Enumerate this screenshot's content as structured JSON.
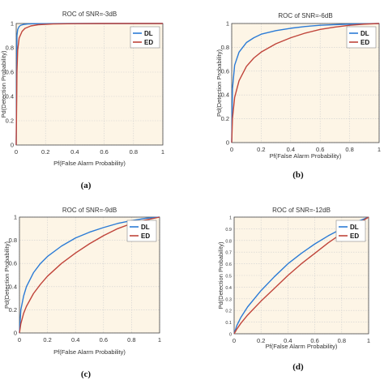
{
  "figure": {
    "colors": {
      "background": "#fdf5e6",
      "grid": "#cfcfcf",
      "axis": "#444444"
    }
  },
  "chart_data": [
    {
      "type": "line",
      "panel_tag": "(a)",
      "title": "ROC  of SNR=-3dB",
      "xlabel": "Pf(False Alarm Probability)",
      "ylabel": "Pd(Detection Probability)",
      "xlim": [
        0,
        1
      ],
      "ylim": [
        0,
        1
      ],
      "xticks": [
        "0",
        "0.2",
        "0.4",
        "0.6",
        "0.8",
        "1"
      ],
      "yticks": [
        "0",
        "0.2",
        "0.4",
        "0.6",
        "0.8",
        "1"
      ],
      "grid": true,
      "legend": "top-right",
      "series": [
        {
          "name": "DL",
          "color": "#2b7bd6",
          "x": [
            0,
            0.005,
            0.01,
            0.02,
            0.03,
            0.05,
            0.08,
            0.12,
            0.2,
            0.4,
            0.7,
            1
          ],
          "y": [
            0,
            0.9,
            0.95,
            0.975,
            0.985,
            0.992,
            0.996,
            0.998,
            0.999,
            1,
            1,
            1
          ]
        },
        {
          "name": "ED",
          "color": "#c0443a",
          "x": [
            0,
            0.005,
            0.01,
            0.02,
            0.04,
            0.06,
            0.1,
            0.15,
            0.25,
            0.4,
            0.6,
            1
          ],
          "y": [
            0,
            0.6,
            0.78,
            0.88,
            0.935,
            0.96,
            0.98,
            0.99,
            0.996,
            0.999,
            1,
            1
          ]
        }
      ]
    },
    {
      "type": "line",
      "panel_tag": "(b)",
      "title": "ROC  of SNR=-6dB",
      "xlabel": "Pf(False Alarm Probability)",
      "ylabel": "Pd(Detection Probability)",
      "xlim": [
        0,
        1
      ],
      "ylim": [
        0,
        1
      ],
      "xticks": [
        "0",
        "0.2",
        "0.4",
        "0.6",
        "0.8",
        "1"
      ],
      "yticks": [
        "0",
        "0.2",
        "0.4",
        "0.6",
        "0.8",
        "1"
      ],
      "grid": true,
      "legend": "top-right",
      "series": [
        {
          "name": "DL",
          "color": "#2b7bd6",
          "x": [
            0,
            0.005,
            0.02,
            0.05,
            0.1,
            0.15,
            0.2,
            0.3,
            0.4,
            0.5,
            0.6,
            0.7,
            0.8,
            0.9,
            1
          ],
          "y": [
            0,
            0.45,
            0.65,
            0.76,
            0.84,
            0.88,
            0.91,
            0.94,
            0.96,
            0.975,
            0.985,
            0.99,
            0.995,
            0.998,
            1
          ]
        },
        {
          "name": "ED",
          "color": "#c0443a",
          "x": [
            0,
            0.005,
            0.02,
            0.05,
            0.1,
            0.15,
            0.2,
            0.3,
            0.4,
            0.5,
            0.6,
            0.7,
            0.8,
            0.9,
            1
          ],
          "y": [
            0,
            0.2,
            0.38,
            0.52,
            0.64,
            0.71,
            0.76,
            0.83,
            0.88,
            0.92,
            0.95,
            0.97,
            0.985,
            0.995,
            1
          ]
        }
      ]
    },
    {
      "type": "line",
      "panel_tag": "(c)",
      "title": "ROC  of SNR=-9dB",
      "xlabel": "Pf(False Alarm Probability)",
      "ylabel": "Pd(Detection Probability)",
      "xlim": [
        0,
        1
      ],
      "ylim": [
        0,
        1
      ],
      "xticks": [
        "0",
        "0.2",
        "0.4",
        "0.6",
        "0.8",
        "1"
      ],
      "yticks": [
        "0",
        "0.2",
        "0.4",
        "0.6",
        "0.8",
        "1"
      ],
      "grid": true,
      "legend": "top-right",
      "series": [
        {
          "name": "DL",
          "color": "#2b7bd6",
          "x": [
            0,
            0.01,
            0.03,
            0.05,
            0.1,
            0.15,
            0.2,
            0.3,
            0.4,
            0.5,
            0.6,
            0.7,
            0.8,
            0.9,
            1
          ],
          "y": [
            0,
            0.2,
            0.32,
            0.4,
            0.52,
            0.6,
            0.66,
            0.75,
            0.82,
            0.87,
            0.91,
            0.945,
            0.97,
            0.99,
            1
          ]
        },
        {
          "name": "ED",
          "color": "#c0443a",
          "x": [
            0,
            0.01,
            0.03,
            0.05,
            0.1,
            0.15,
            0.2,
            0.3,
            0.4,
            0.5,
            0.6,
            0.7,
            0.8,
            0.9,
            1
          ],
          "y": [
            0,
            0.08,
            0.17,
            0.23,
            0.34,
            0.42,
            0.49,
            0.6,
            0.69,
            0.77,
            0.84,
            0.9,
            0.945,
            0.975,
            1
          ]
        }
      ]
    },
    {
      "type": "line",
      "panel_tag": "(d)",
      "title": "ROC  of SNR=-12dB",
      "xlabel": "Pf(False Alarm Probability)",
      "ylabel": "Pd(Detection Probability)",
      "xlim": [
        0,
        1
      ],
      "ylim": [
        0,
        1
      ],
      "xticks": [
        "0",
        "0.2",
        "0.4",
        "0.6",
        "0.8",
        "1"
      ],
      "yticks": [
        "0",
        "0.1",
        "0.2",
        "0.3",
        "0.4",
        "0.5",
        "0.6",
        "0.7",
        "0.8",
        "0.9",
        "1"
      ],
      "grid": true,
      "legend": "top-right",
      "series": [
        {
          "name": "DL",
          "color": "#2b7bd6",
          "x": [
            0,
            0.02,
            0.05,
            0.1,
            0.2,
            0.3,
            0.4,
            0.5,
            0.6,
            0.7,
            0.8,
            0.9,
            1
          ],
          "y": [
            0,
            0.07,
            0.14,
            0.23,
            0.37,
            0.49,
            0.6,
            0.69,
            0.77,
            0.84,
            0.9,
            0.955,
            1
          ]
        },
        {
          "name": "ED",
          "color": "#c0443a",
          "x": [
            0,
            0.02,
            0.05,
            0.1,
            0.2,
            0.3,
            0.4,
            0.5,
            0.6,
            0.7,
            0.8,
            0.9,
            1
          ],
          "y": [
            0,
            0.04,
            0.09,
            0.16,
            0.28,
            0.39,
            0.5,
            0.6,
            0.69,
            0.78,
            0.86,
            0.93,
            1
          ]
        }
      ]
    }
  ]
}
